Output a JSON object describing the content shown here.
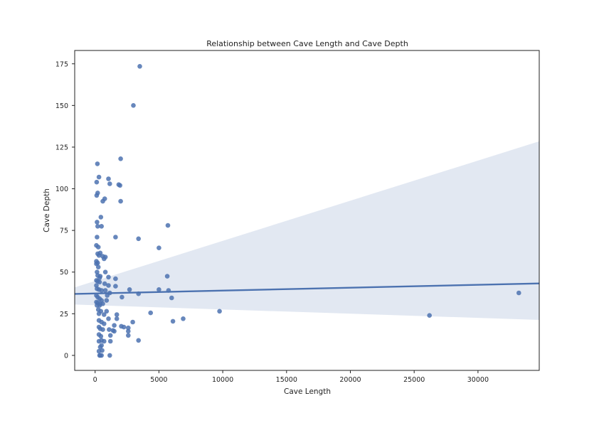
{
  "chart_data": {
    "type": "scatter",
    "title": "Relationship between Cave Length and Cave Depth",
    "xlabel": "Cave Length",
    "ylabel": "Cave Depth",
    "xlim": [
      -1600,
      34800
    ],
    "ylim": [
      -9,
      183
    ],
    "xticks": [
      0,
      5000,
      10000,
      15000,
      20000,
      25000,
      30000
    ],
    "yticks": [
      0,
      25,
      50,
      75,
      100,
      125,
      150,
      175
    ],
    "grid": false,
    "colors": {
      "points": "#4c72b0",
      "line": "#4c72b0",
      "band": "#4c72b0"
    },
    "regression": {
      "x": [
        -1600,
        34800
      ],
      "y": [
        36.9,
        43.2
      ],
      "ci_lower": [
        30.5,
        21.3
      ],
      "ci_upper": [
        40.8,
        128.5
      ]
    },
    "points": [
      [
        3500,
        173.5
      ],
      [
        3000,
        150
      ],
      [
        2000,
        118
      ],
      [
        180,
        115
      ],
      [
        300,
        107
      ],
      [
        1050,
        106
      ],
      [
        1150,
        103
      ],
      [
        120,
        104
      ],
      [
        1850,
        102.5
      ],
      [
        1950,
        102
      ],
      [
        120,
        96
      ],
      [
        200,
        97.5
      ],
      [
        750,
        94
      ],
      [
        600,
        92.5
      ],
      [
        2000,
        92.5
      ],
      [
        450,
        83
      ],
      [
        150,
        80
      ],
      [
        200,
        77.5
      ],
      [
        500,
        77.5
      ],
      [
        5700,
        78
      ],
      [
        1600,
        71
      ],
      [
        150,
        71
      ],
      [
        3400,
        70
      ],
      [
        100,
        66
      ],
      [
        250,
        65
      ],
      [
        5000,
        64.5
      ],
      [
        200,
        61
      ],
      [
        400,
        61.5
      ],
      [
        300,
        60
      ],
      [
        600,
        59.5
      ],
      [
        800,
        59
      ],
      [
        700,
        58
      ],
      [
        100,
        56.5
      ],
      [
        200,
        55.5
      ],
      [
        100,
        55
      ],
      [
        250,
        53
      ],
      [
        150,
        50
      ],
      [
        800,
        50
      ],
      [
        1050,
        47
      ],
      [
        5650,
        47.5
      ],
      [
        200,
        48
      ],
      [
        400,
        47.5
      ],
      [
        350,
        46.5
      ],
      [
        1600,
        46
      ],
      [
        100,
        45
      ],
      [
        200,
        44.5
      ],
      [
        350,
        44
      ],
      [
        750,
        43
      ],
      [
        1050,
        42
      ],
      [
        1600,
        41.5
      ],
      [
        100,
        42
      ],
      [
        150,
        40
      ],
      [
        300,
        39.5
      ],
      [
        500,
        39
      ],
      [
        800,
        39
      ],
      [
        2700,
        39.5
      ],
      [
        5000,
        39.5
      ],
      [
        5750,
        39
      ],
      [
        1150,
        37.5
      ],
      [
        950,
        36
      ],
      [
        3400,
        37
      ],
      [
        2100,
        35
      ],
      [
        6000,
        34.5
      ],
      [
        100,
        36
      ],
      [
        200,
        35
      ],
      [
        350,
        34
      ],
      [
        500,
        33
      ],
      [
        900,
        33
      ],
      [
        100,
        32
      ],
      [
        200,
        31.5
      ],
      [
        400,
        31
      ],
      [
        600,
        31
      ],
      [
        150,
        30
      ],
      [
        350,
        30
      ],
      [
        250,
        27.5
      ],
      [
        450,
        26.5
      ],
      [
        900,
        26.5
      ],
      [
        4350,
        25.5
      ],
      [
        9750,
        26.5
      ],
      [
        300,
        25
      ],
      [
        700,
        24.5
      ],
      [
        1700,
        24.5
      ],
      [
        1050,
        22
      ],
      [
        1700,
        22
      ],
      [
        6900,
        22
      ],
      [
        6100,
        20.5
      ],
      [
        26200,
        24
      ],
      [
        33200,
        37.5
      ],
      [
        300,
        21
      ],
      [
        500,
        20
      ],
      [
        700,
        19
      ],
      [
        2950,
        20
      ],
      [
        1500,
        18
      ],
      [
        2050,
        17.5
      ],
      [
        2250,
        17
      ],
      [
        300,
        17
      ],
      [
        400,
        16
      ],
      [
        600,
        15.5
      ],
      [
        1100,
        15.5
      ],
      [
        2600,
        16.5
      ],
      [
        2600,
        14.5
      ],
      [
        1400,
        15
      ],
      [
        1500,
        14.5
      ],
      [
        300,
        12.5
      ],
      [
        450,
        11.5
      ],
      [
        1200,
        12
      ],
      [
        2600,
        12
      ],
      [
        300,
        8.5
      ],
      [
        500,
        9
      ],
      [
        700,
        8.5
      ],
      [
        1200,
        8.5
      ],
      [
        3400,
        9
      ],
      [
        500,
        6
      ],
      [
        400,
        5
      ],
      [
        550,
        3
      ],
      [
        300,
        2.5
      ],
      [
        350,
        0
      ],
      [
        400,
        0
      ],
      [
        500,
        0
      ],
      [
        1150,
        0
      ]
    ]
  }
}
